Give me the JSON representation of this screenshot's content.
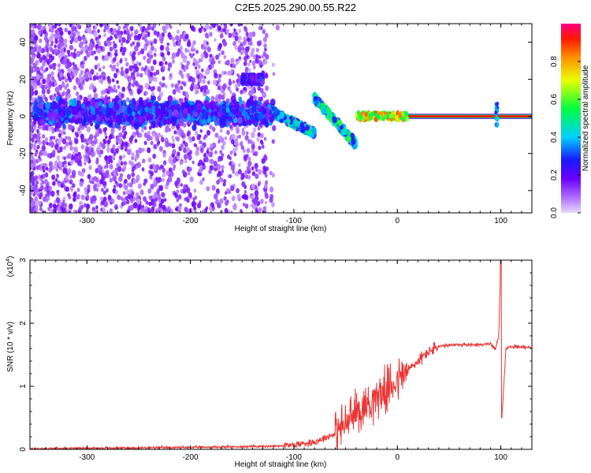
{
  "title": "C2E5.2025.290.00.55.R22",
  "chart_data": [
    {
      "type": "heatmap",
      "xlabel": "Height of straight line (km)",
      "ylabel": "Frequency (Hz)",
      "xlim": [
        -355,
        130
      ],
      "ylim": [
        -52,
        50
      ],
      "xticks": [
        -300,
        -200,
        -100,
        0,
        100
      ],
      "yticks": [
        -40,
        -20,
        0,
        20,
        40
      ],
      "colorbar": {
        "label": "Normalized spectral amplitude",
        "range": [
          0,
          1
        ],
        "ticks": [
          "0.0",
          "0.2",
          "0.4",
          "0.6",
          "0.8"
        ],
        "tick_values": [
          0,
          0.2,
          0.4,
          0.6,
          0.8
        ]
      },
      "features": [
        {
          "name": "main band",
          "x": [
            -350,
            -120
          ],
          "freq": [
            -5,
            8
          ],
          "amplitude": 0.3
        },
        {
          "name": "tone near 20 Hz",
          "x": [
            -150,
            -130
          ],
          "freq": 20,
          "amplitude": 0.25
        },
        {
          "name": "descending chirp",
          "x": [
            -120,
            -80
          ],
          "freq": [
            2,
            -9
          ],
          "amplitude": 0.4
        },
        {
          "name": "secondary chirp",
          "x": [
            -80,
            -40
          ],
          "freq": [
            10,
            -15
          ],
          "amplitude": 0.45
        },
        {
          "name": "steady carrier",
          "x": [
            -40,
            130
          ],
          "freq": 0,
          "amplitude": 0.95
        },
        {
          "name": "spike",
          "x": [
            96,
            96
          ],
          "freq": [
            -5,
            7
          ],
          "amplitude": 0.3
        }
      ]
    },
    {
      "type": "line",
      "xlabel": "Height of straight line (km)",
      "ylabel": "SNR (10 * v/v)",
      "scale_label": "(x10^4)",
      "scale_base": "(x10",
      "scale_exp": "4",
      "scale_close": ")",
      "xlim": [
        -355,
        130
      ],
      "ylim": [
        0,
        3
      ],
      "xticks": [
        -300,
        -200,
        -100,
        0,
        100
      ],
      "yticks": [
        0,
        1,
        2,
        3
      ],
      "series": [
        {
          "name": "SNR",
          "color": "#ee3333",
          "x": [
            -355,
            -200,
            -120,
            -100,
            -80,
            -60,
            -50,
            -40,
            -30,
            -20,
            -10,
            0,
            10,
            20,
            30,
            40,
            60,
            80,
            90,
            95,
            98,
            100,
            101,
            105,
            120,
            130
          ],
          "y": [
            0.01,
            0.03,
            0.05,
            0.07,
            0.12,
            0.25,
            0.4,
            0.6,
            0.7,
            0.85,
            0.95,
            1.1,
            1.25,
            1.4,
            1.55,
            1.63,
            1.66,
            1.66,
            1.67,
            1.6,
            1.8,
            3.0,
            0.5,
            1.62,
            1.62,
            1.62
          ]
        }
      ]
    }
  ]
}
